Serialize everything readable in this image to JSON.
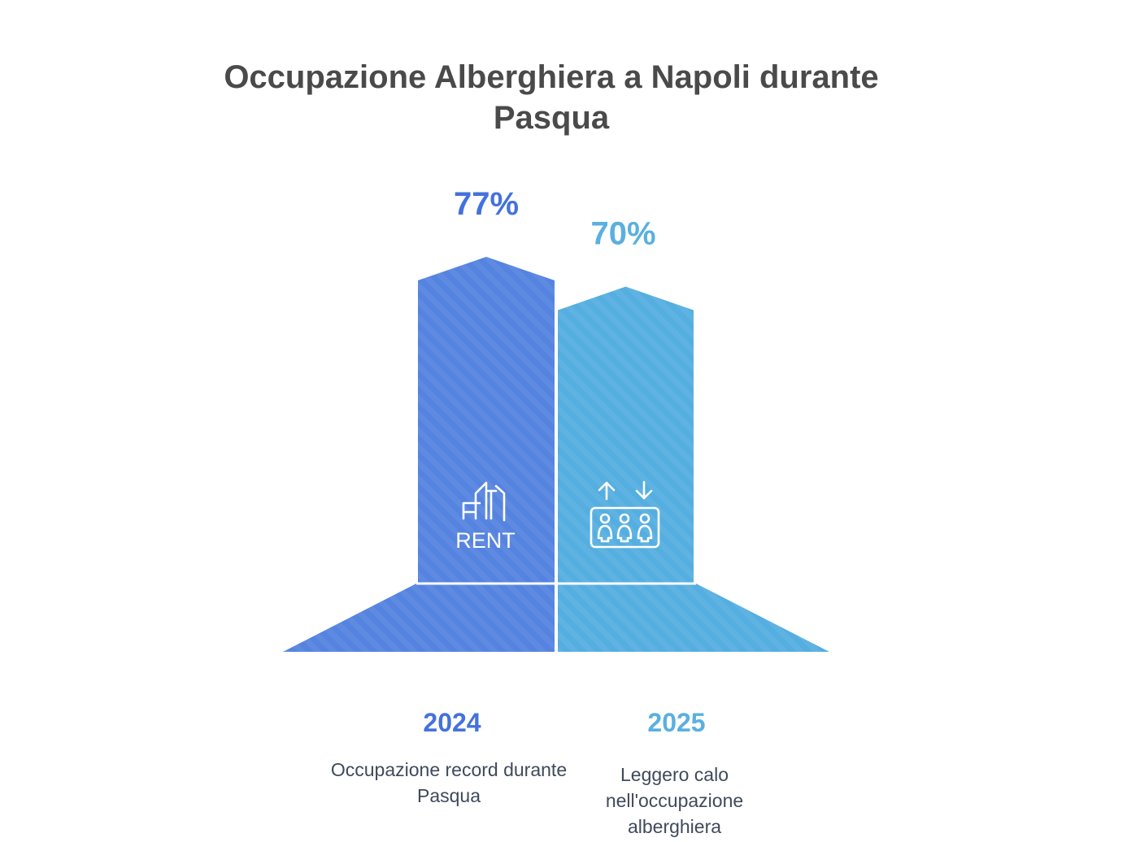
{
  "title": "Occupazione Alberghiera a Napoli durante Pasqua",
  "colors": {
    "bar_2024": "#5583e0",
    "bar_2025": "#55aee0",
    "label_2024": "#4472dc",
    "label_2025": "#5ab0df",
    "title": "#4a4a4a",
    "description": "#3f4a5a"
  },
  "icons": {
    "bar_2024": "rent-sign-icon",
    "bar_2025": "elevator-icon"
  },
  "icon_text": {
    "rent": "RENT"
  },
  "chart_data": {
    "type": "bar",
    "title": "Occupazione Alberghiera a Napoli durante Pasqua",
    "categories": [
      "2024",
      "2025"
    ],
    "values": [
      77,
      70
    ],
    "unit": "%",
    "value_labels": [
      "77%",
      "70%"
    ],
    "descriptions": [
      "Occupazione record durante Pasqua",
      "Leggero calo nell'occupazione alberghiera"
    ],
    "xlabel": "",
    "ylabel": "",
    "grid": false
  }
}
